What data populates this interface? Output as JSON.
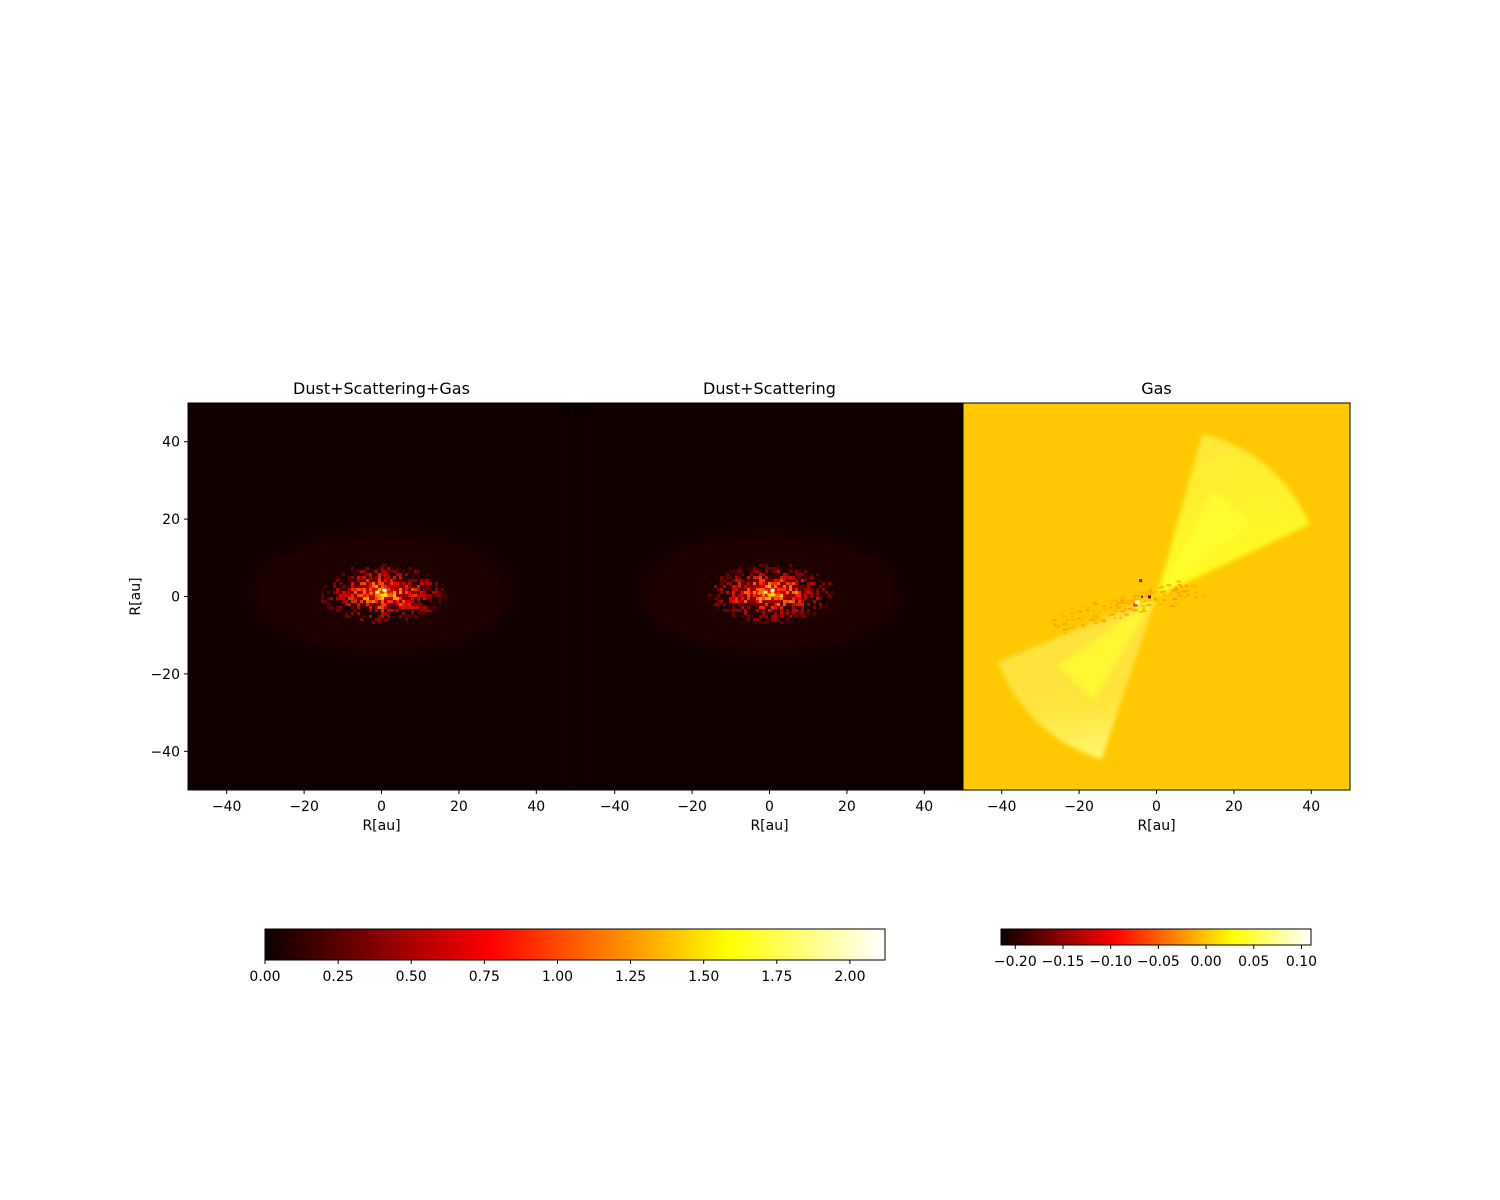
{
  "chart_data": [
    {
      "type": "heatmap",
      "title": "Dust+Scattering+Gas",
      "xlabel": "R[au]",
      "ylabel": "R[au]",
      "xlim": [
        -50,
        50
      ],
      "ylim": [
        -50,
        50
      ],
      "xticks": [
        -40,
        -20,
        0,
        20,
        40
      ],
      "yticks": [
        -40,
        -20,
        0,
        20,
        40
      ],
      "colormap": "hot",
      "colorbar": "colorbar-1",
      "background_value": 0.02,
      "features": [
        {
          "kind": "central-blob",
          "center": [
            0,
            1
          ],
          "radius_x": 14,
          "radius_y": 6,
          "peak": 2.1
        }
      ]
    },
    {
      "type": "heatmap",
      "title": "Dust+Scattering",
      "xlabel": "R[au]",
      "xlim": [
        -50,
        50
      ],
      "ylim": [
        -50,
        50
      ],
      "xticks": [
        -40,
        -20,
        0,
        20,
        40
      ],
      "colormap": "hot",
      "colorbar": "colorbar-1",
      "background_value": 0.02,
      "features": [
        {
          "kind": "central-blob",
          "center": [
            0,
            1
          ],
          "radius_x": 14,
          "radius_y": 6,
          "peak": 2.1
        }
      ]
    },
    {
      "type": "heatmap",
      "title": "Gas",
      "xlabel": "R[au]",
      "xlim": [
        -50,
        50
      ],
      "ylim": [
        -50,
        50
      ],
      "xticks": [
        -40,
        -20,
        0,
        20,
        40
      ],
      "colormap": "hot",
      "colorbar": "colorbar-2",
      "background_value": 0.0,
      "features": [
        {
          "kind": "bipolar-lobe",
          "from": [
            0,
            0
          ],
          "to": [
            28,
            33
          ],
          "value": 0.04
        },
        {
          "kind": "bipolar-lobe",
          "from": [
            0,
            0
          ],
          "to": [
            -30,
            -32
          ],
          "value": 0.04
        },
        {
          "kind": "absorption-streak",
          "center": [
            -8,
            -2
          ],
          "value": -0.05
        }
      ]
    }
  ],
  "colorbars": [
    {
      "id": "colorbar-1",
      "colormap": "hot",
      "min": 0.0,
      "max": 2.12,
      "ticks": [
        "0.00",
        "0.25",
        "0.50",
        "0.75",
        "1.00",
        "1.25",
        "1.50",
        "1.75",
        "2.00"
      ]
    },
    {
      "id": "colorbar-2",
      "colormap": "hot",
      "min": -0.215,
      "max": 0.11,
      "ticks": [
        "−0.20",
        "−0.15",
        "−0.10",
        "−0.05",
        "0.00",
        "0.05",
        "0.10"
      ]
    }
  ],
  "colors": {
    "hot_stops": [
      "#0b0000",
      "#ff0000",
      "#ffff00",
      "#ffffff"
    ],
    "gas_background": "#ffc800"
  }
}
